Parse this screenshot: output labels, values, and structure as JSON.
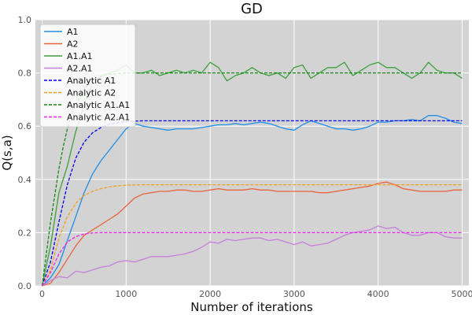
{
  "chart_data": {
    "type": "line",
    "title": "GD",
    "xlabel": "Number of iterations",
    "ylabel": "Q(s,a)",
    "xlim": [
      -80,
      5080
    ],
    "ylim": [
      0.0,
      1.0
    ],
    "xticks": [
      0,
      1000,
      2000,
      3000,
      4000,
      5000
    ],
    "yticks": [
      0.0,
      0.2,
      0.4,
      0.6,
      0.8,
      1.0
    ],
    "ytick_labels": [
      "0.0",
      "0.2",
      "0.4",
      "0.6",
      "0.8",
      "1.0"
    ],
    "grid": true,
    "legend_position": "top-left",
    "background": "#d3d3d3",
    "series": [
      {
        "name": "A1",
        "color": "#1f8fe8",
        "style": "solid",
        "x": [
          0,
          100,
          200,
          300,
          400,
          500,
          600,
          700,
          800,
          900,
          1000,
          1100,
          1200,
          1300,
          1400,
          1500,
          1600,
          1700,
          1800,
          1900,
          2000,
          2100,
          2200,
          2300,
          2400,
          2500,
          2600,
          2700,
          2800,
          2900,
          3000,
          3100,
          3200,
          3300,
          3400,
          3500,
          3600,
          3700,
          3800,
          3900,
          4000,
          4100,
          4200,
          4300,
          4400,
          4500,
          4600,
          4700,
          4800,
          4900,
          5000
        ],
        "y": [
          0.0,
          0.03,
          0.08,
          0.17,
          0.26,
          0.35,
          0.42,
          0.47,
          0.51,
          0.55,
          0.59,
          0.61,
          0.6,
          0.595,
          0.59,
          0.585,
          0.59,
          0.59,
          0.59,
          0.595,
          0.6,
          0.605,
          0.605,
          0.61,
          0.605,
          0.61,
          0.615,
          0.61,
          0.6,
          0.59,
          0.585,
          0.605,
          0.62,
          0.61,
          0.6,
          0.59,
          0.59,
          0.585,
          0.59,
          0.6,
          0.615,
          0.615,
          0.62,
          0.62,
          0.625,
          0.62,
          0.64,
          0.64,
          0.63,
          0.615,
          0.61
        ]
      },
      {
        "name": "A2",
        "color": "#e8643c",
        "style": "solid",
        "x": [
          0,
          100,
          200,
          300,
          400,
          500,
          600,
          700,
          800,
          900,
          1000,
          1100,
          1200,
          1300,
          1400,
          1500,
          1600,
          1700,
          1800,
          1900,
          2000,
          2100,
          2200,
          2300,
          2400,
          2500,
          2600,
          2700,
          2800,
          2900,
          3000,
          3100,
          3200,
          3300,
          3400,
          3500,
          3600,
          3700,
          3800,
          3900,
          4000,
          4100,
          4200,
          4300,
          4400,
          4500,
          4600,
          4700,
          4800,
          4900,
          5000
        ],
        "y": [
          0.0,
          0.01,
          0.05,
          0.1,
          0.15,
          0.19,
          0.21,
          0.23,
          0.25,
          0.27,
          0.3,
          0.33,
          0.345,
          0.35,
          0.355,
          0.355,
          0.36,
          0.36,
          0.355,
          0.355,
          0.36,
          0.365,
          0.36,
          0.36,
          0.36,
          0.365,
          0.36,
          0.36,
          0.355,
          0.355,
          0.355,
          0.355,
          0.355,
          0.35,
          0.35,
          0.355,
          0.36,
          0.365,
          0.37,
          0.375,
          0.385,
          0.39,
          0.38,
          0.365,
          0.36,
          0.355,
          0.355,
          0.355,
          0.355,
          0.36,
          0.36
        ]
      },
      {
        "name": "A1.A1",
        "color": "#3ca03c",
        "style": "solid",
        "x": [
          0,
          100,
          200,
          300,
          400,
          500,
          600,
          700,
          800,
          900,
          1000,
          1100,
          1200,
          1300,
          1400,
          1500,
          1600,
          1700,
          1800,
          1900,
          2000,
          2100,
          2200,
          2300,
          2400,
          2500,
          2600,
          2700,
          2800,
          2900,
          3000,
          3100,
          3200,
          3300,
          3400,
          3500,
          3600,
          3700,
          3800,
          3900,
          4000,
          4100,
          4200,
          4300,
          4400,
          4500,
          4600,
          4700,
          4800,
          4900,
          5000
        ],
        "y": [
          0.0,
          0.15,
          0.35,
          0.45,
          0.58,
          0.68,
          0.76,
          0.79,
          0.8,
          0.81,
          0.83,
          0.8,
          0.8,
          0.81,
          0.79,
          0.8,
          0.81,
          0.8,
          0.81,
          0.8,
          0.84,
          0.82,
          0.77,
          0.79,
          0.8,
          0.82,
          0.8,
          0.79,
          0.8,
          0.78,
          0.82,
          0.83,
          0.78,
          0.8,
          0.82,
          0.82,
          0.84,
          0.79,
          0.81,
          0.83,
          0.84,
          0.82,
          0.82,
          0.8,
          0.78,
          0.8,
          0.84,
          0.81,
          0.8,
          0.8,
          0.78
        ]
      },
      {
        "name": "A2.A1",
        "color": "#c77fdc",
        "style": "solid",
        "x": [
          0,
          100,
          200,
          300,
          400,
          500,
          600,
          700,
          800,
          900,
          1000,
          1100,
          1200,
          1300,
          1400,
          1500,
          1600,
          1700,
          1800,
          1900,
          2000,
          2100,
          2200,
          2300,
          2400,
          2500,
          2600,
          2700,
          2800,
          2900,
          3000,
          3100,
          3200,
          3300,
          3400,
          3500,
          3600,
          3700,
          3800,
          3900,
          4000,
          4100,
          4200,
          4300,
          4400,
          4500,
          4600,
          4700,
          4800,
          4900,
          5000
        ],
        "y": [
          0.0,
          0.02,
          0.035,
          0.03,
          0.055,
          0.05,
          0.06,
          0.07,
          0.075,
          0.09,
          0.095,
          0.09,
          0.1,
          0.11,
          0.11,
          0.11,
          0.115,
          0.12,
          0.13,
          0.145,
          0.165,
          0.16,
          0.175,
          0.17,
          0.175,
          0.18,
          0.18,
          0.17,
          0.175,
          0.165,
          0.155,
          0.165,
          0.15,
          0.155,
          0.16,
          0.175,
          0.19,
          0.2,
          0.205,
          0.21,
          0.225,
          0.215,
          0.22,
          0.2,
          0.19,
          0.19,
          0.2,
          0.2,
          0.185,
          0.18,
          0.18
        ]
      },
      {
        "name": "Analytic A1",
        "color": "#0000ee",
        "style": "dashed",
        "x": [
          0,
          100,
          200,
          300,
          400,
          500,
          600,
          700,
          800,
          900,
          1000,
          1100,
          1200,
          2000,
          3000,
          4000,
          5000
        ],
        "y": [
          0.0,
          0.09,
          0.24,
          0.38,
          0.48,
          0.54,
          0.575,
          0.595,
          0.607,
          0.613,
          0.617,
          0.619,
          0.62,
          0.62,
          0.62,
          0.62,
          0.62
        ]
      },
      {
        "name": "Analytic A2",
        "color": "#f0a020",
        "style": "dashed",
        "x": [
          0,
          100,
          200,
          300,
          400,
          500,
          600,
          700,
          800,
          900,
          1000,
          1100,
          1200,
          2000,
          3000,
          4000,
          5000
        ],
        "y": [
          0.0,
          0.06,
          0.18,
          0.26,
          0.31,
          0.34,
          0.355,
          0.365,
          0.372,
          0.376,
          0.378,
          0.379,
          0.38,
          0.38,
          0.38,
          0.38,
          0.38
        ]
      },
      {
        "name": "Analytic A1.A1",
        "color": "#118811",
        "style": "dashed",
        "x": [
          0,
          50,
          100,
          150,
          200,
          250,
          300,
          350,
          400,
          450,
          500,
          600,
          700,
          800,
          1000,
          2000,
          3000,
          4000,
          5000
        ],
        "y": [
          0.0,
          0.12,
          0.24,
          0.34,
          0.44,
          0.52,
          0.59,
          0.64,
          0.68,
          0.71,
          0.74,
          0.77,
          0.785,
          0.795,
          0.8,
          0.8,
          0.8,
          0.8,
          0.8
        ]
      },
      {
        "name": "Analytic A2.A1",
        "color": "#ee22ee",
        "style": "dashed",
        "x": [
          0,
          100,
          200,
          300,
          400,
          500,
          600,
          700,
          800,
          1000,
          2000,
          3000,
          4000,
          5000
        ],
        "y": [
          0.0,
          0.05,
          0.12,
          0.165,
          0.185,
          0.195,
          0.199,
          0.2,
          0.2,
          0.2,
          0.2,
          0.2,
          0.2,
          0.2
        ]
      }
    ]
  }
}
